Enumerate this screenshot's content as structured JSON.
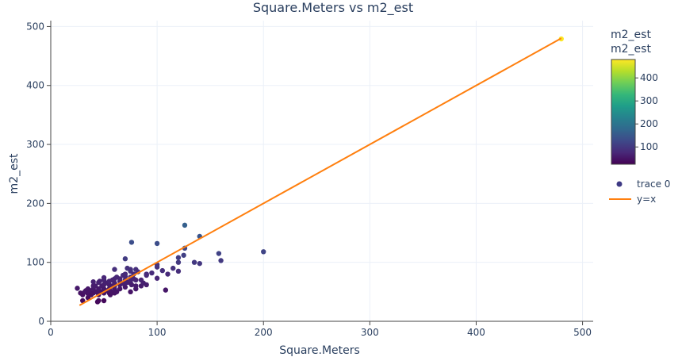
{
  "chart_data": {
    "type": "scatter",
    "title": "Square.Meters vs m2_est",
    "xlabel": "Square.Meters",
    "ylabel": "m2_est",
    "xlim": [
      0,
      510
    ],
    "ylim": [
      0,
      510
    ],
    "x_ticks": [
      0,
      100,
      200,
      300,
      400,
      500
    ],
    "y_ticks": [
      0,
      100,
      200,
      300,
      400,
      500
    ],
    "grid": true,
    "legend_position": "right",
    "colorbar": {
      "title_line1": "m2_est",
      "title_line2": "m2_est",
      "ticks": [
        100,
        200,
        300,
        400
      ],
      "range": [
        25,
        480
      ],
      "colorscale": [
        "#440154",
        "#482878",
        "#3e4989",
        "#31688e",
        "#26828e",
        "#1f9e89",
        "#35b779",
        "#6ece58",
        "#b5de2b",
        "#fde725"
      ]
    },
    "series": [
      {
        "name": "trace 0",
        "mode": "markers",
        "x": [
          25,
          28,
          30,
          30,
          32,
          33,
          35,
          35,
          35,
          36,
          38,
          38,
          40,
          40,
          40,
          40,
          42,
          42,
          44,
          45,
          45,
          45,
          45,
          45,
          46,
          48,
          48,
          50,
          50,
          50,
          50,
          50,
          50,
          52,
          52,
          55,
          55,
          55,
          55,
          56,
          58,
          58,
          58,
          60,
          60,
          60,
          60,
          60,
          60,
          62,
          62,
          65,
          65,
          65,
          65,
          67,
          68,
          70,
          70,
          70,
          70,
          70,
          72,
          72,
          75,
          75,
          75,
          75,
          75,
          75,
          76,
          78,
          78,
          80,
          80,
          80,
          80,
          82,
          85,
          85,
          87,
          90,
          90,
          90,
          95,
          100,
          100,
          100,
          105,
          108,
          110,
          115,
          120,
          120,
          120,
          125,
          126,
          135,
          140,
          140,
          158,
          160,
          200,
          70,
          76,
          100,
          126,
          480
        ],
        "y": [
          56,
          48,
          35,
          45,
          50,
          52,
          40,
          47,
          55,
          50,
          45,
          52,
          48,
          55,
          60,
          67,
          50,
          60,
          33,
          35,
          45,
          50,
          55,
          66,
          68,
          50,
          60,
          35,
          48,
          55,
          62,
          70,
          74,
          52,
          65,
          48,
          55,
          62,
          68,
          45,
          50,
          60,
          70,
          48,
          55,
          60,
          65,
          72,
          88,
          50,
          75,
          55,
          62,
          68,
          72,
          64,
          78,
          58,
          65,
          70,
          76,
          80,
          66,
          90,
          50,
          65,
          70,
          75,
          85,
          88,
          62,
          72,
          80,
          55,
          60,
          70,
          88,
          84,
          60,
          70,
          65,
          62,
          78,
          80,
          82,
          73,
          92,
          96,
          86,
          53,
          80,
          90,
          85,
          100,
          108,
          112,
          124,
          100,
          98,
          144,
          115,
          103,
          118,
          106,
          134,
          132,
          163,
          479
        ],
        "colors_by": "y"
      },
      {
        "name": "y=x",
        "mode": "line",
        "color": "#ff7f0e",
        "x": [
          27,
          480
        ],
        "y": [
          27,
          480
        ]
      }
    ]
  }
}
